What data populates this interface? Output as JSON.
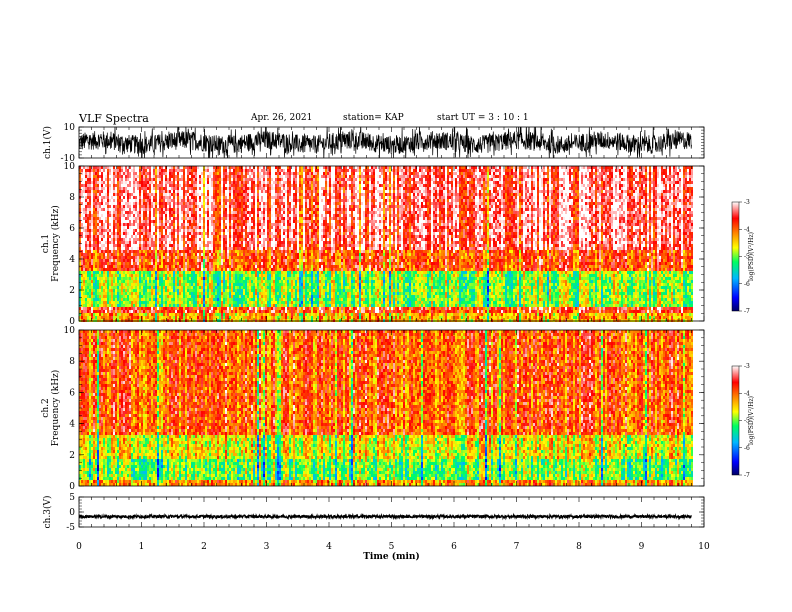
{
  "header": {
    "title": "VLF Spectra",
    "date": "Apr. 26, 2021",
    "station": "station= KAP",
    "start": "start  UT =   3  : 10 : 1"
  },
  "chart_data": [
    {
      "type": "line",
      "panel": "ch1 waveform",
      "ylabel": "ch.1(V)",
      "ylim": [
        -10,
        10
      ],
      "yticks": [
        "10",
        "-10"
      ],
      "xlim": [
        0,
        10
      ],
      "x_end": 9.8,
      "description_values": {
        "mean": 0,
        "amplitude_range": [
          -5,
          6
        ]
      }
    },
    {
      "type": "heatmap",
      "panel": "ch1 spectrogram",
      "ylabel": [
        "ch.1",
        "Frequency  (kHz)"
      ],
      "ylim": [
        0,
        10
      ],
      "yticks": [
        "0",
        "2",
        "4",
        "6",
        "8",
        "10"
      ],
      "xlim": [
        0,
        10
      ],
      "x_end": 9.8,
      "bands": [
        {
          "f_range": [
            0,
            0.5
          ],
          "level": -4.3
        },
        {
          "f_range": [
            0.5,
            1.0
          ],
          "level": -3.6
        },
        {
          "f_range": [
            1.0,
            3.3
          ],
          "level": -4.9
        },
        {
          "f_range": [
            3.3,
            4.5
          ],
          "level": -3.8
        },
        {
          "f_range": [
            4.5,
            10
          ],
          "level": -3.3
        }
      ],
      "colorbar": {
        "ticks": [
          "-3",
          "-4",
          "-5",
          "-6",
          "-7"
        ],
        "range": [
          -7,
          -3
        ],
        "label": "log(PSD)(V²/Hz)"
      }
    },
    {
      "type": "heatmap",
      "panel": "ch2 spectrogram",
      "ylabel": [
        "ch.2",
        "Frequency  (kHz)"
      ],
      "ylim": [
        0,
        10
      ],
      "yticks": [
        "0",
        "2",
        "4",
        "6",
        "8",
        "10"
      ],
      "xlim": [
        0,
        10
      ],
      "x_end": 9.8,
      "bands": [
        {
          "f_range": [
            0,
            0.4
          ],
          "level": -4.2
        },
        {
          "f_range": [
            0.4,
            1.8
          ],
          "level": -5.0
        },
        {
          "f_range": [
            1.8,
            3.2
          ],
          "level": -4.6
        },
        {
          "f_range": [
            3.2,
            10
          ],
          "level": -3.9
        }
      ],
      "colorbar": {
        "ticks": [
          "-3",
          "-4",
          "-5",
          "-6",
          "-7"
        ],
        "range": [
          -7,
          -3
        ],
        "label": "log(PSD)(V²/Hz)"
      }
    },
    {
      "type": "line",
      "panel": "ch3 waveform",
      "ylabel": "ch.3(V)",
      "ylim": [
        -5,
        5
      ],
      "yticks": [
        "5",
        "0",
        "-5"
      ],
      "xlim": [
        0,
        10
      ],
      "x_end": 9.8,
      "description_values": {
        "mean": -1.5,
        "amplitude_range": [
          -2,
          -1
        ]
      }
    }
  ],
  "xaxis": {
    "label": "Time  (min)",
    "ticks": [
      "0",
      "1",
      "2",
      "3",
      "4",
      "5",
      "6",
      "7",
      "8",
      "9",
      "10"
    ]
  }
}
